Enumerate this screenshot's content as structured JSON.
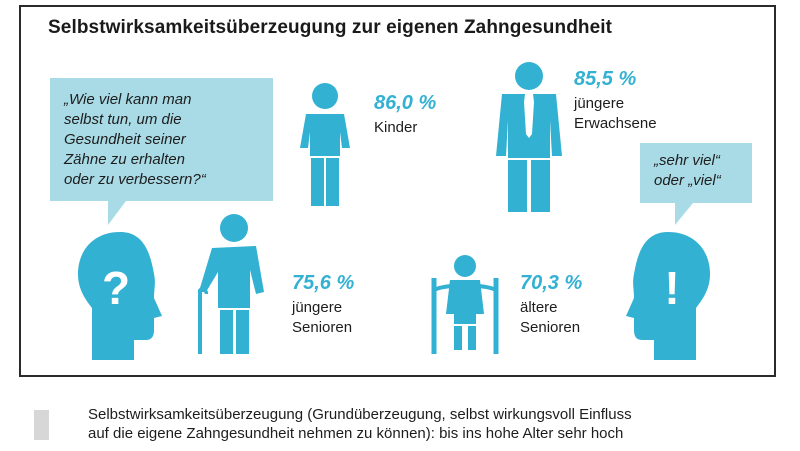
{
  "title": "Selbstwirksamkeitsüberzeugung zur eigenen Zahngesundheit",
  "question_bubble": {
    "lines": [
      "„Wie viel kann man",
      "selbst tun, um die",
      "Gesundheit seiner",
      "Zähne zu erhalten",
      "oder zu verbessern?“"
    ]
  },
  "answer_bubble": {
    "lines": [
      "„sehr viel“",
      "oder „viel“"
    ]
  },
  "groups": [
    {
      "value": "86,0 %",
      "label": [
        "Kinder"
      ]
    },
    {
      "value": "85,5 %",
      "label": [
        "jüngere",
        "Erwachsene"
      ]
    },
    {
      "value": "75,6 %",
      "label": [
        "jüngere",
        "Senioren"
      ]
    },
    {
      "value": "70,3 %",
      "label": [
        "ältere",
        "Senioren"
      ]
    }
  ],
  "head_icons": {
    "left_symbol": "?",
    "right_symbol": "!"
  },
  "icons": [
    "head-question-icon",
    "child-figure-icon",
    "adult-tie-figure-icon",
    "senior-cane-figure-icon",
    "wheelchair-figure-icon",
    "head-exclamation-icon"
  ],
  "colors": {
    "accent": "#33b1d3",
    "bubble": "#a9dbe7",
    "legend_swatch": "#d7d7d7"
  },
  "legend": {
    "lines": [
      "Selbstwirksamkeitsüberzeugung (Grundüberzeugung, selbst wirkungsvoll Einfluss",
      "auf die eigene Zahngesundheit nehmen zu können): bis ins hohe Alter sehr hoch"
    ]
  }
}
